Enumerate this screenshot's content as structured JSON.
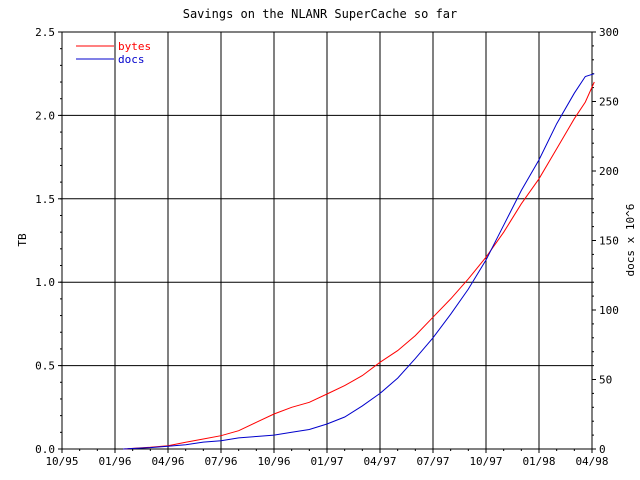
{
  "chart_data": {
    "type": "line",
    "title": "Savings on the NLANR SuperCache so far",
    "ylabel_left": "TB",
    "ylabel_right": "docs x 10^6",
    "x_ticks": [
      "10/95",
      "01/96",
      "04/96",
      "07/96",
      "10/96",
      "01/97",
      "04/97",
      "07/97",
      "10/97",
      "01/98",
      "04/98"
    ],
    "x_range": [
      "1995-10",
      "1998-04"
    ],
    "y_left_ticks": [
      "0.0",
      "0.5",
      "1.0",
      "1.5",
      "2.0",
      "2.5"
    ],
    "y_left_range": [
      0,
      2.5
    ],
    "y_right_ticks": [
      "0",
      "50",
      "100",
      "150",
      "200",
      "250",
      "300"
    ],
    "y_right_range": [
      0,
      300
    ],
    "grid": true,
    "legend_position": "top-left",
    "series": [
      {
        "name": "bytes",
        "axis": "left",
        "color": "#ff0000",
        "points": [
          [
            "1996-01-15",
            0.0
          ],
          [
            "1996-03-01",
            0.01
          ],
          [
            "1996-04-01",
            0.02
          ],
          [
            "1996-05-01",
            0.04
          ],
          [
            "1996-06-01",
            0.06
          ],
          [
            "1996-07-01",
            0.08
          ],
          [
            "1996-08-01",
            0.11
          ],
          [
            "1996-09-01",
            0.16
          ],
          [
            "1996-10-01",
            0.21
          ],
          [
            "1996-11-01",
            0.25
          ],
          [
            "1996-12-01",
            0.28
          ],
          [
            "1997-01-01",
            0.33
          ],
          [
            "1997-02-01",
            0.38
          ],
          [
            "1997-03-01",
            0.44
          ],
          [
            "1997-04-01",
            0.52
          ],
          [
            "1997-05-01",
            0.59
          ],
          [
            "1997-06-01",
            0.68
          ],
          [
            "1997-07-01",
            0.79
          ],
          [
            "1997-08-01",
            0.9
          ],
          [
            "1997-09-01",
            1.02
          ],
          [
            "1997-10-01",
            1.15
          ],
          [
            "1997-11-01",
            1.3
          ],
          [
            "1997-12-01",
            1.47
          ],
          [
            "1998-01-01",
            1.62
          ],
          [
            "1998-02-01",
            1.8
          ],
          [
            "1998-03-01",
            1.98
          ],
          [
            "1998-03-20",
            2.08
          ],
          [
            "1998-04-05",
            2.2
          ]
        ]
      },
      {
        "name": "docs",
        "axis": "right",
        "color": "#0000cc",
        "points": [
          [
            "1996-01-15",
            0
          ],
          [
            "1996-03-01",
            1
          ],
          [
            "1996-04-01",
            2
          ],
          [
            "1996-05-01",
            3
          ],
          [
            "1996-06-01",
            5
          ],
          [
            "1996-07-01",
            6
          ],
          [
            "1996-08-01",
            8
          ],
          [
            "1996-09-01",
            9
          ],
          [
            "1996-10-01",
            10
          ],
          [
            "1996-11-01",
            12
          ],
          [
            "1996-12-01",
            14
          ],
          [
            "1997-01-01",
            18
          ],
          [
            "1997-02-01",
            23
          ],
          [
            "1997-03-01",
            31
          ],
          [
            "1997-04-01",
            40
          ],
          [
            "1997-05-01",
            51
          ],
          [
            "1997-06-01",
            65
          ],
          [
            "1997-07-01",
            80
          ],
          [
            "1997-08-01",
            97
          ],
          [
            "1997-09-01",
            115
          ],
          [
            "1997-10-01",
            136
          ],
          [
            "1997-11-01",
            161
          ],
          [
            "1997-12-01",
            186
          ],
          [
            "1998-01-01",
            208
          ],
          [
            "1998-02-01",
            234
          ],
          [
            "1998-03-01",
            256
          ],
          [
            "1998-03-20",
            268
          ],
          [
            "1998-04-05",
            270
          ]
        ]
      }
    ]
  }
}
